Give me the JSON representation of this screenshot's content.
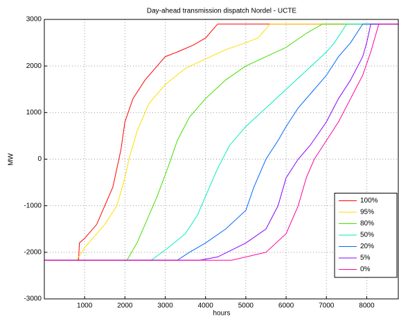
{
  "chart_data": {
    "type": "line",
    "title": "Day-ahead transmission dispatch Nordel - UCTE",
    "x_label": "hours",
    "y_label": "MW",
    "xlim": [
      0,
      8784
    ],
    "xticks": [
      1000,
      2000,
      3000,
      4000,
      5000,
      6000,
      7000,
      8000
    ],
    "ylim": [
      -3000,
      3000
    ],
    "yticks": [
      -3000,
      -2000,
      -1000,
      0,
      1000,
      2000,
      3000
    ],
    "grid": true,
    "legend": "lower right",
    "series": [
      {
        "name": "100%",
        "color": "#ff0000",
        "x": [
          0,
          850,
          870,
          1000,
          1300,
          1500,
          1700,
          1800,
          1900,
          2000,
          2200,
          2500,
          2800,
          3000,
          3300,
          3700,
          4000,
          4300,
          8784
        ],
        "values": [
          -2170,
          -2170,
          -1800,
          -1700,
          -1400,
          -1000,
          -600,
          -200,
          200,
          800,
          1300,
          1700,
          2000,
          2200,
          2300,
          2450,
          2600,
          2900,
          2900
        ]
      },
      {
        "name": "95%",
        "color": "#ffdd00",
        "x": [
          0,
          800,
          1000,
          1200,
          1500,
          1800,
          2000,
          2100,
          2300,
          2600,
          3000,
          3500,
          4000,
          4500,
          5000,
          5300,
          5600,
          8784
        ],
        "values": [
          -2170,
          -2170,
          -1900,
          -1700,
          -1400,
          -1000,
          -400,
          0,
          600,
          1200,
          1600,
          1950,
          2150,
          2350,
          2500,
          2600,
          2900,
          2900
        ]
      },
      {
        "name": "80%",
        "color": "#44dd00",
        "x": [
          0,
          2050,
          2300,
          2500,
          2800,
          3100,
          3300,
          3600,
          4000,
          4500,
          5000,
          5500,
          6000,
          6500,
          6900,
          8784
        ],
        "values": [
          -2170,
          -2170,
          -1800,
          -1400,
          -800,
          -100,
          400,
          900,
          1300,
          1700,
          2000,
          2200,
          2400,
          2700,
          2900,
          2900
        ]
      },
      {
        "name": "50%",
        "color": "#00eebb",
        "x": [
          0,
          2650,
          3000,
          3500,
          3800,
          4000,
          4300,
          4600,
          5000,
          5500,
          6000,
          6500,
          7000,
          7200,
          7500,
          8784
        ],
        "values": [
          -2170,
          -2170,
          -1950,
          -1600,
          -1200,
          -800,
          -200,
          300,
          700,
          1100,
          1500,
          1900,
          2300,
          2500,
          2900,
          2900
        ]
      },
      {
        "name": "20%",
        "color": "#0066ff",
        "x": [
          0,
          3300,
          3600,
          4000,
          4500,
          5000,
          5200,
          5500,
          5800,
          6000,
          6300,
          6700,
          7000,
          7300,
          7600,
          7900,
          8784
        ],
        "values": [
          -2170,
          -2170,
          -2000,
          -1800,
          -1500,
          -1100,
          -600,
          0,
          400,
          700,
          1100,
          1500,
          1800,
          2200,
          2500,
          2900,
          2900
        ]
      },
      {
        "name": "5%",
        "color": "#8800ff",
        "x": [
          0,
          3850,
          4300,
          5000,
          5500,
          5800,
          6000,
          6300,
          6600,
          7000,
          7300,
          7600,
          7900,
          8000,
          8100,
          8784
        ],
        "values": [
          -2170,
          -2170,
          -2100,
          -1800,
          -1500,
          -1000,
          -400,
          0,
          300,
          800,
          1300,
          1700,
          2200,
          2500,
          2900,
          2900
        ]
      },
      {
        "name": "0%",
        "color": "#ff0099",
        "x": [
          0,
          4650,
          5500,
          6000,
          6300,
          6500,
          6700,
          7000,
          7300,
          7600,
          7900,
          8100,
          8200,
          8300,
          8784
        ],
        "values": [
          -2170,
          -2170,
          -2000,
          -1600,
          -1000,
          -400,
          0,
          400,
          800,
          1300,
          1800,
          2300,
          2600,
          2900,
          2900
        ]
      }
    ]
  }
}
